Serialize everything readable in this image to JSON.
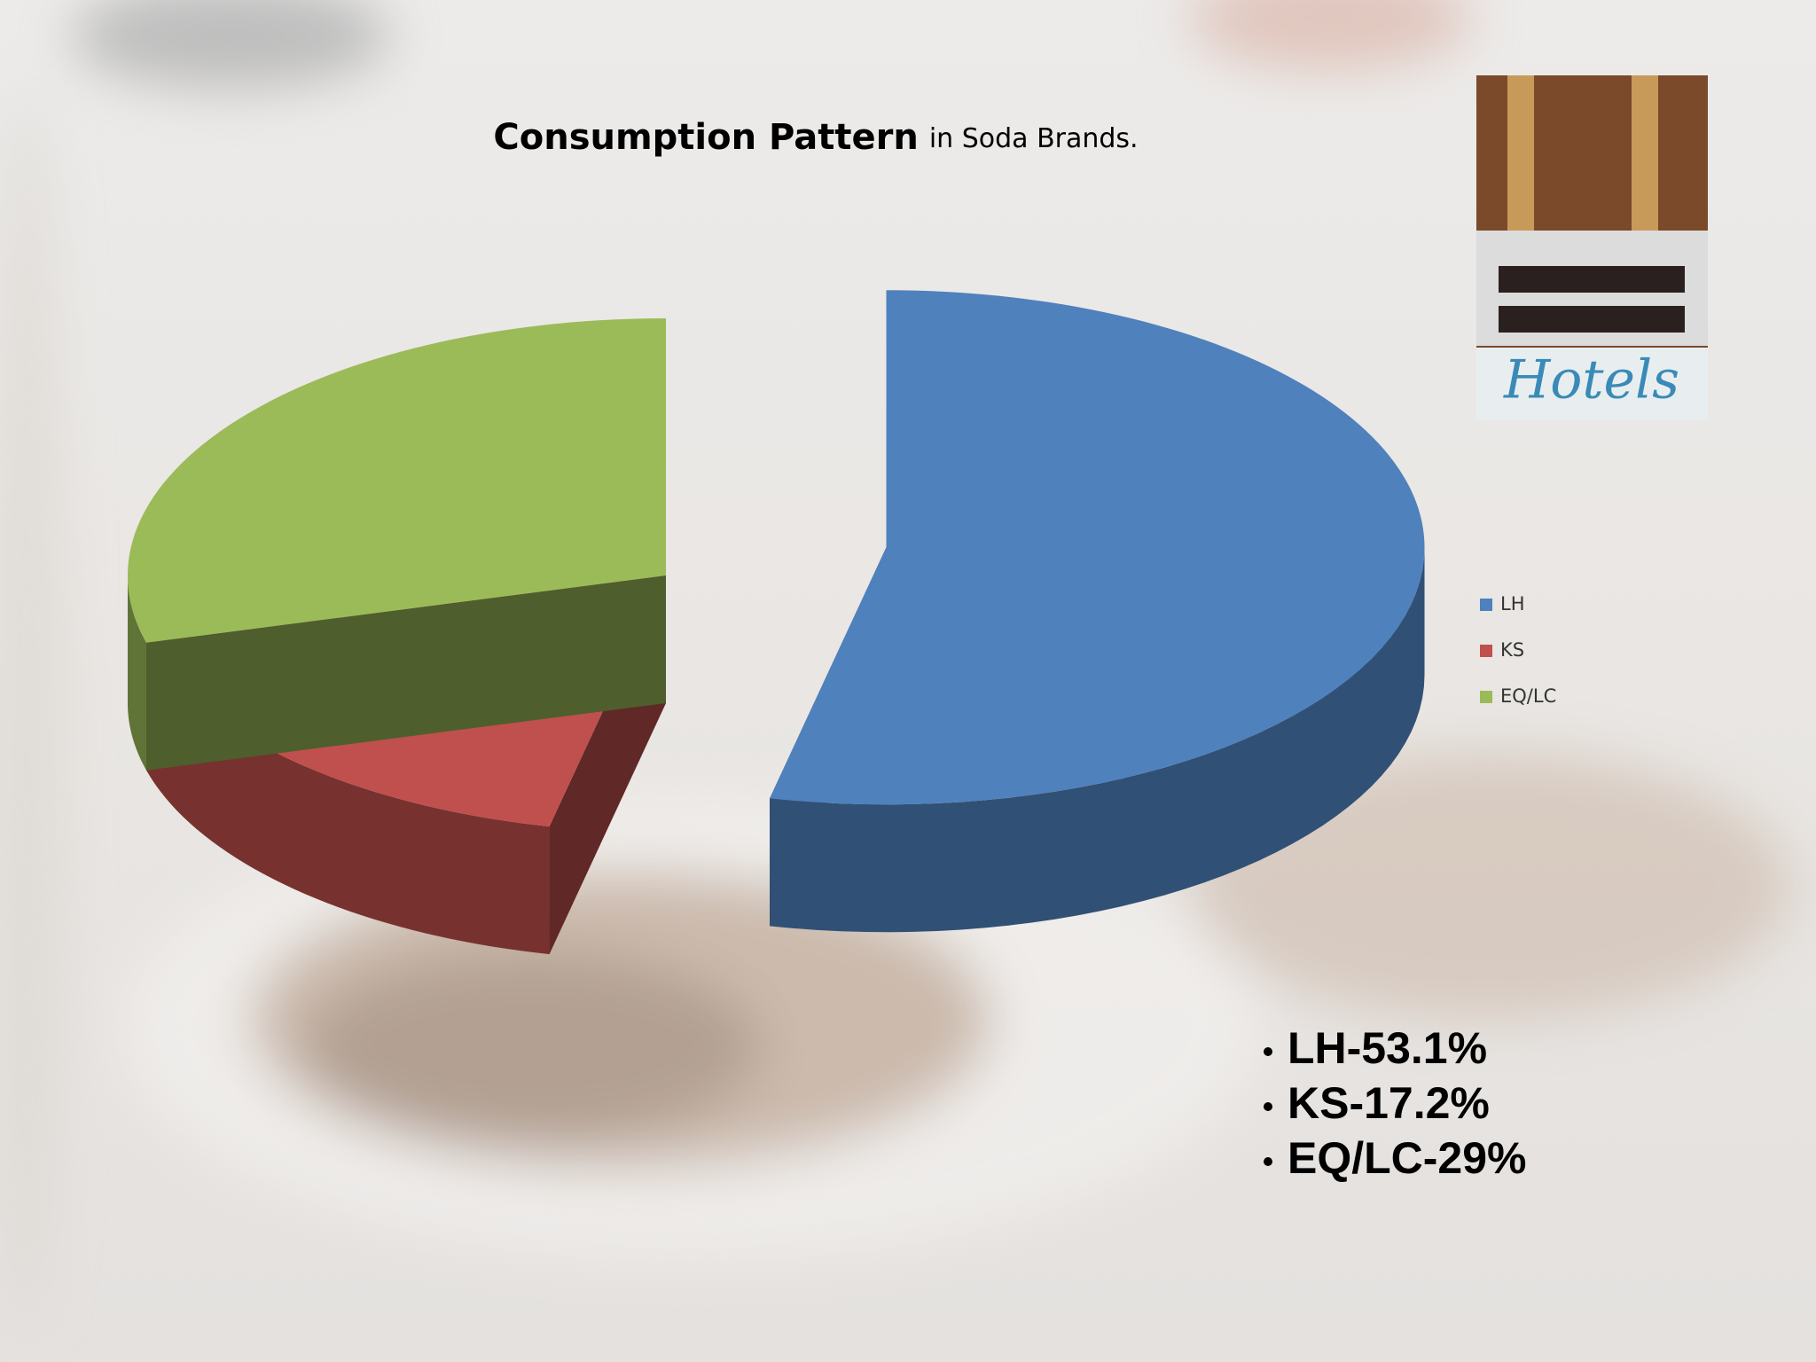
{
  "chart_data": {
    "type": "pie",
    "title": "Consumption Pattern",
    "title_suffix": "in Soda Brands.",
    "categories": [
      "LH",
      "KS",
      "EQ/LC"
    ],
    "values": [
      53.1,
      17.2,
      29
    ],
    "series": [
      {
        "name": "LH",
        "color": "#4f81bd"
      },
      {
        "name": "KS",
        "color": "#c0504d"
      },
      {
        "name": "EQ/LC",
        "color": "#9bbb59"
      }
    ],
    "legend": "right",
    "bullets": [
      "LH-53.1%",
      "KS-17.2%",
      "EQ/LC-29%"
    ]
  },
  "picture": {
    "caption": "Hotels"
  }
}
